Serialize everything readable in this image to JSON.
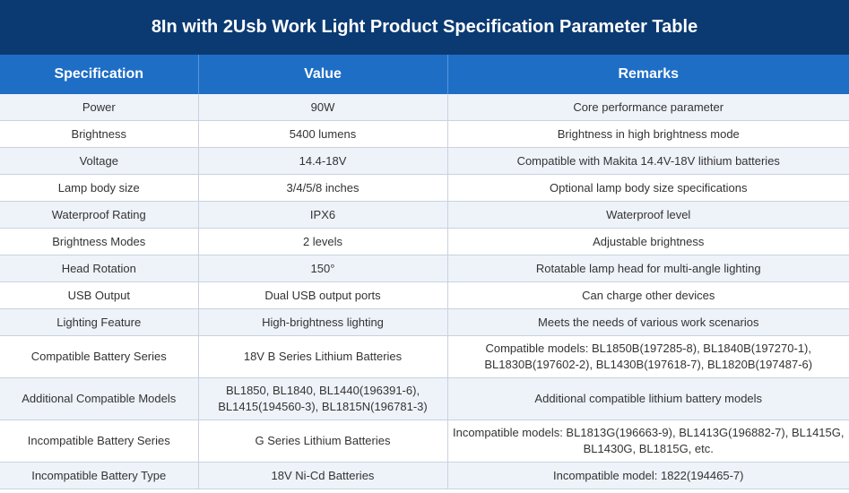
{
  "title": "8In with 2Usb Work Light Product Specification Parameter Table",
  "table": {
    "headers": [
      "Specification",
      "Value",
      "Remarks"
    ],
    "rows": [
      {
        "spec": "Power",
        "value": "90W",
        "remarks": "Core performance parameter"
      },
      {
        "spec": "Brightness",
        "value": "5400 lumens",
        "remarks": "Brightness in high brightness mode"
      },
      {
        "spec": "Voltage",
        "value": "14.4-18V",
        "remarks": "Compatible with Makita 14.4V-18V lithium batteries"
      },
      {
        "spec": "Lamp body size",
        "value": "3/4/5/8 inches",
        "remarks": "Optional lamp body size specifications"
      },
      {
        "spec": "Waterproof Rating",
        "value": "IPX6",
        "remarks": "Waterproof level"
      },
      {
        "spec": "Brightness Modes",
        "value": "2 levels",
        "remarks": "Adjustable brightness"
      },
      {
        "spec": "Head Rotation",
        "value": "150°",
        "remarks": "Rotatable lamp head for multi-angle lighting"
      },
      {
        "spec": "USB Output",
        "value": "Dual USB output ports",
        "remarks": "Can charge other devices"
      },
      {
        "spec": "Lighting Feature",
        "value": "High-brightness lighting",
        "remarks": "Meets the needs of various work scenarios"
      },
      {
        "spec": "Compatible Battery Series",
        "value": "18V B Series Lithium Batteries",
        "remarks": "Compatible models: BL1850B(197285-8), BL1840B(197270-1), BL1830B(197602-2), BL1430B(197618-7), BL1820B(197487-6)"
      },
      {
        "spec": "Additional Compatible Models",
        "value": "BL1850, BL1840, BL1440(196391-6), BL1415(194560-3), BL1815N(196781-3)",
        "remarks": "Additional compatible lithium battery models"
      },
      {
        "spec": "Incompatible Battery Series",
        "value": "G Series Lithium Batteries",
        "remarks": "Incompatible models: BL1813G(196663-9), BL1413G(196882-7), BL1415G, BL1430G, BL1815G, etc."
      },
      {
        "spec": "Incompatible Battery Type",
        "value": "18V Ni-Cd Batteries",
        "remarks": "Incompatible model: 1822(194465-7)"
      }
    ]
  }
}
